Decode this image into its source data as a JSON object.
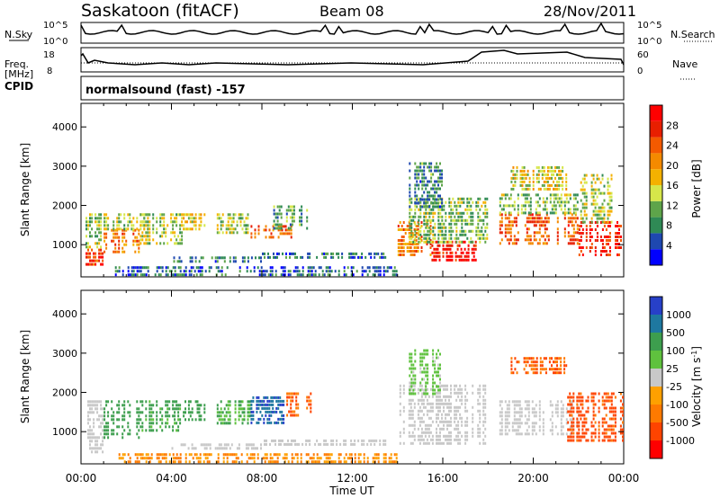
{
  "header": {
    "station": "Saskatoon (fitACF)",
    "beam": "Beam 08",
    "date": "28/Nov/2011"
  },
  "status_panels": {
    "nsky_label": "N.Sky",
    "nsky_ticks": [
      "10^5",
      "10^0"
    ],
    "nsearch_label": "N.Search",
    "nsearch_ticks": [
      "10^5",
      "10^0"
    ],
    "freq_label_line1": "Freq.",
    "freq_label_line2": "[MHz]",
    "freq_ticks": [
      "18",
      "8"
    ],
    "nave_label": "Nave",
    "nave_ticks": [
      "60",
      "0"
    ],
    "cpid_label": "CPID",
    "cpid_value": "normalsound (fast) -157"
  },
  "colorbars": {
    "power": {
      "title": "Power [dB]",
      "ticks": [
        "28",
        "24",
        "20",
        "16",
        "12",
        "8",
        "4"
      ],
      "colors": [
        "#0000ff",
        "#1e48b0",
        "#2f8a55",
        "#5ea44a",
        "#d6e64a",
        "#f4b100",
        "#f48a00",
        "#f45a00",
        "#e81f00",
        "#ff0000"
      ]
    },
    "velocity": {
      "title": "Velocity [m s^-1]",
      "ticks": [
        "1000",
        "500",
        "100",
        "25",
        "-25",
        "-100",
        "-500",
        "-1000"
      ],
      "colors": [
        "#2740c8",
        "#1e78a0",
        "#3d9e4e",
        "#5fc23e",
        "#c8c8c8",
        "#ffa000",
        "#ff7a00",
        "#ff4400",
        "#ff0000"
      ]
    }
  },
  "chart_data": [
    {
      "type": "heatmap",
      "title": "",
      "xlabel": "Time UT",
      "ylabel": "Slant Range [km]",
      "x_ticks": [
        "00:00",
        "04:00",
        "08:00",
        "12:00",
        "16:00",
        "20:00",
        "00:00"
      ],
      "y_ticks": [
        "1000",
        "2000",
        "3000",
        "4000"
      ],
      "xlim_hours": [
        0,
        24
      ],
      "ylim_km": [
        180,
        4600
      ],
      "quantity": "Power [dB]",
      "patches": [
        {
          "t": [
            0.2,
            1.0
          ],
          "r": [
            500,
            900
          ],
          "dB": 26
        },
        {
          "t": [
            0.2,
            1.0
          ],
          "r": [
            900,
            1800
          ],
          "dB": 12
        },
        {
          "t": [
            1.0,
            2.6
          ],
          "r": [
            800,
            1400
          ],
          "dB": 22
        },
        {
          "t": [
            1.0,
            3.0
          ],
          "r": [
            1400,
            1800
          ],
          "dB": 14
        },
        {
          "t": [
            2.6,
            4.5
          ],
          "r": [
            1000,
            1800
          ],
          "dB": 14
        },
        {
          "t": [
            4.5,
            5.5
          ],
          "r": [
            1400,
            1800
          ],
          "dB": 16
        },
        {
          "t": [
            6.0,
            7.5
          ],
          "r": [
            1300,
            1800
          ],
          "dB": 14
        },
        {
          "t": [
            7.5,
            9.5
          ],
          "r": [
            1200,
            1500
          ],
          "dB": 24
        },
        {
          "t": [
            8.5,
            10.2
          ],
          "r": [
            1400,
            2000
          ],
          "dB": 10
        },
        {
          "t": [
            4.0,
            8.0
          ],
          "r": [
            600,
            700
          ],
          "dB": 8
        },
        {
          "t": [
            8.0,
            13.5
          ],
          "r": [
            650,
            800
          ],
          "dB": 6
        },
        {
          "t": [
            14.0,
            15.5
          ],
          "r": [
            700,
            1600
          ],
          "dB": 22
        },
        {
          "t": [
            15.5,
            17.5
          ],
          "r": [
            600,
            1100
          ],
          "dB": 30
        },
        {
          "t": [
            14.5,
            18.0
          ],
          "r": [
            1100,
            2200
          ],
          "dB": 12
        },
        {
          "t": [
            14.5,
            16.0
          ],
          "r": [
            2000,
            3100
          ],
          "dB": 8
        },
        {
          "t": [
            18.5,
            22.0
          ],
          "r": [
            1000,
            1800
          ],
          "dB": 24
        },
        {
          "t": [
            18.5,
            22.0
          ],
          "r": [
            1800,
            2300
          ],
          "dB": 12
        },
        {
          "t": [
            19.0,
            21.5
          ],
          "r": [
            2400,
            3000
          ],
          "dB": 16
        },
        {
          "t": [
            22.0,
            24.0
          ],
          "r": [
            700,
            1600
          ],
          "dB": 28
        },
        {
          "t": [
            22.0,
            23.5
          ],
          "r": [
            1600,
            2800
          ],
          "dB": 14
        },
        {
          "t": [
            1.5,
            14.0
          ],
          "r": [
            250,
            450
          ],
          "dB": 6
        }
      ]
    },
    {
      "type": "heatmap",
      "title": "",
      "xlabel": "Time UT",
      "ylabel": "Slant Range [km]",
      "x_ticks": [
        "00:00",
        "04:00",
        "08:00",
        "12:00",
        "16:00",
        "20:00",
        "00:00"
      ],
      "y_ticks": [
        "1000",
        "2000",
        "3000",
        "4000"
      ],
      "xlim_hours": [
        0,
        24
      ],
      "ylim_km": [
        180,
        4600
      ],
      "quantity": "Velocity [m s^-1]",
      "patches": [
        {
          "t": [
            0.2,
            1.0
          ],
          "r": [
            500,
            1800
          ],
          "v": 0
        },
        {
          "t": [
            1.0,
            2.6
          ],
          "r": [
            800,
            1800
          ],
          "v": 150
        },
        {
          "t": [
            2.6,
            4.5
          ],
          "r": [
            1000,
            1800
          ],
          "v": 80
        },
        {
          "t": [
            4.5,
            5.5
          ],
          "r": [
            1300,
            1800
          ],
          "v": 120
        },
        {
          "t": [
            6.0,
            7.5
          ],
          "r": [
            1200,
            1800
          ],
          "v": 60
        },
        {
          "t": [
            7.5,
            9.0
          ],
          "r": [
            1200,
            1900
          ],
          "v": 600
        },
        {
          "t": [
            9.0,
            10.2
          ],
          "r": [
            1400,
            2000
          ],
          "v": -300
        },
        {
          "t": [
            4.0,
            8.0
          ],
          "r": [
            600,
            700
          ],
          "v": 0
        },
        {
          "t": [
            8.0,
            13.5
          ],
          "r": [
            650,
            800
          ],
          "v": 0
        },
        {
          "t": [
            14.0,
            18.0
          ],
          "r": [
            700,
            2200
          ],
          "v": 0
        },
        {
          "t": [
            14.5,
            16.0
          ],
          "r": [
            2000,
            3100
          ],
          "v": 40
        },
        {
          "t": [
            18.5,
            22.0
          ],
          "r": [
            900,
            1800
          ],
          "v": 0
        },
        {
          "t": [
            19.0,
            21.5
          ],
          "r": [
            2500,
            2900
          ],
          "v": -300
        },
        {
          "t": [
            21.5,
            24.0
          ],
          "r": [
            800,
            2000
          ],
          "v": -400
        },
        {
          "t": [
            1.5,
            14.0
          ],
          "r": [
            250,
            450
          ],
          "v": -60
        }
      ]
    }
  ]
}
